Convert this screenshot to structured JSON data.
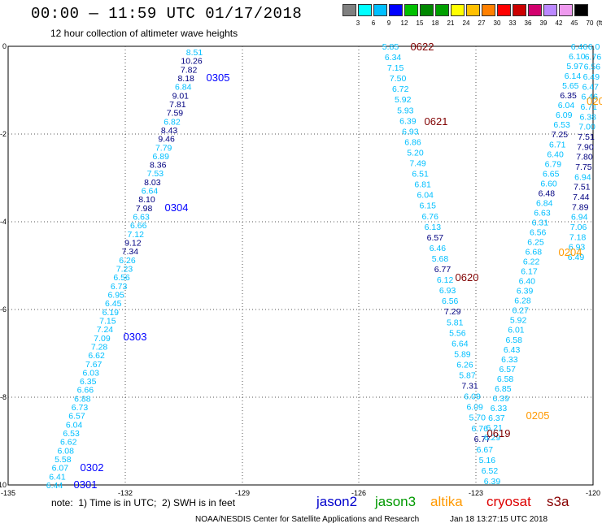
{
  "title": "00:00 — 11:59 UTC 01/17/2018",
  "subtitle": "12 hour collection of altimeter wave heights",
  "colorbar": {
    "labels": [
      "3",
      "6",
      "9",
      "12",
      "15",
      "18",
      "21",
      "24",
      "27",
      "30",
      "33",
      "36",
      "39",
      "42",
      "45",
      "70"
    ],
    "unit": "(ft)",
    "colors": [
      "#808080",
      "#00ffff",
      "#00bfff",
      "#0000ff",
      "#00c000",
      "#008800",
      "#00a000",
      "#ffff00",
      "#ffc000",
      "#ff8000",
      "#ff0000",
      "#cc0000",
      "#d2006e",
      "#bb88ff",
      "#ee99ee",
      "#000000"
    ]
  },
  "axes": {
    "x_ticks": [
      "-135",
      "-132",
      "-129",
      "-126",
      "-123",
      "-120"
    ],
    "y_ticks": [
      "0",
      "-2",
      "-4",
      "-6",
      "-8",
      "-10"
    ]
  },
  "colors": {
    "cyan": "#00bfff",
    "blue": "#0000ff",
    "dark": "#000080",
    "darkred": "#800000",
    "orange": "#ff9900"
  },
  "tracks": [
    {
      "label": "0305",
      "color": "#0000ff"
    },
    {
      "label": "0304",
      "color": "#0000ff"
    },
    {
      "label": "0303",
      "color": "#0000ff"
    },
    {
      "label": "0302",
      "color": "#0000ff"
    },
    {
      "label": "0301",
      "color": "#0000ff"
    },
    {
      "label": "0622",
      "color": "#800000"
    },
    {
      "label": "0621",
      "color": "#800000"
    },
    {
      "label": "0620",
      "color": "#800000"
    },
    {
      "label": "0619",
      "color": "#800000"
    },
    {
      "label": "0205",
      "color": "#ff9900"
    },
    {
      "label": "0204",
      "color": "#ff9900"
    },
    {
      "label": "020",
      "color": "#ff9900"
    }
  ],
  "track1_values": [
    "8.51",
    "10.26",
    "7.82",
    "8.18",
    "6.84",
    "9.01",
    "7.81",
    "7.59",
    "6.82",
    "8.43",
    "9.46",
    "7.79",
    "6.89",
    "8.36",
    "7.53",
    "8.03",
    "6.64",
    "8.10",
    "7.98",
    "6.63",
    "6.66",
    "7.12",
    "9.12",
    "7.34",
    "6.26",
    "7.23",
    "6.56",
    "6.73",
    "6.95",
    "6.45",
    "6.19",
    "7.15",
    "7.24",
    "7.09",
    "7.28",
    "6.62",
    "7.67",
    "6.03",
    "6.35",
    "6.66",
    "6.88",
    "6.73",
    "6.57",
    "6.04",
    "6.53",
    "6.62",
    "6.08",
    "5.58",
    "6.07",
    "6.41",
    "6.44"
  ],
  "track2_values": [
    "5.85",
    "6.34",
    "7.15",
    "7.50",
    "6.72",
    "5.92",
    "5.93",
    "6.39",
    "6.93",
    "6.86",
    "5.20",
    "7.49",
    "6.51",
    "6.81",
    "6.04",
    "6.15",
    "6.76",
    "6.13",
    "6.57",
    "6.46",
    "5.68",
    "6.77",
    "6.12",
    "6.93",
    "6.56",
    "7.29",
    "5.81",
    "5.56",
    "6.64",
    "5.89",
    "6.26",
    "5.87",
    "7.31",
    "6.09",
    "6.09",
    "5.70",
    "6.76",
    "6.77",
    "6.67",
    "5.16",
    "6.52",
    "6.39"
  ],
  "track3_values": [
    "6.29",
    "6.21",
    "6.37",
    "6.33",
    "6.39",
    "6.85",
    "6.58",
    "6.57",
    "6.33",
    "6.43",
    "6.58",
    "6.01",
    "5.92",
    "6.27",
    "6.28",
    "6.39",
    "6.40",
    "6.17",
    "6.22",
    "6.68",
    "6.25",
    "6.56",
    "6.31",
    "6.63",
    "6.84",
    "6.48",
    "6.60",
    "6.65",
    "6.79",
    "6.40",
    "6.71",
    "7.25",
    "6.53",
    "6.09",
    "6.04",
    "6.35",
    "5.65",
    "6.14",
    "5.97",
    "6.10",
    "6.46"
  ],
  "track4_values": [
    "6.0",
    "6.76",
    "6.56",
    "6.49",
    "6.47",
    "6.46",
    "6.71",
    "6.38",
    "7.00",
    "7.51",
    "7.90",
    "7.80",
    "7.75",
    "6.94",
    "7.51",
    "7.44",
    "7.89",
    "6.94",
    "7.06",
    "7.18",
    "6.93",
    "6.49"
  ],
  "note": "note:  1) Time is in UTC;  2) SWH is in feet",
  "satellites": [
    {
      "name": "jason2",
      "color": "#0000cc"
    },
    {
      "name": "jason3",
      "color": "#009900"
    },
    {
      "name": "altika",
      "color": "#ff9900"
    },
    {
      "name": "cryosat",
      "color": "#dd0000"
    },
    {
      "name": "s3a",
      "color": "#880000"
    }
  ],
  "credit": "NOAA/NESDIS Center for Satellite Applications and Research",
  "stamp": "Jan 18 13:27:15 UTC 2018"
}
